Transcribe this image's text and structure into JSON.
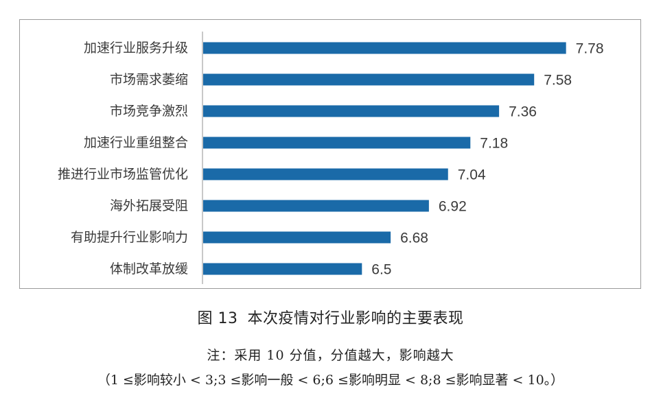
{
  "chart_data": {
    "type": "bar",
    "orientation": "horizontal",
    "categories": [
      "加速行业服务升级",
      "市场需求萎缩",
      "市场竞争激烈",
      "加速行业重组整合",
      "推进行业市场监管优化",
      "海外拓展受阻",
      "有助提升行业影响力",
      "体制改革放缓"
    ],
    "values": [
      7.78,
      7.58,
      7.36,
      7.18,
      7.04,
      6.92,
      6.68,
      6.5
    ],
    "value_labels": [
      "7.78",
      "7.58",
      "7.36",
      "7.18",
      "7.04",
      "6.92",
      "6.68",
      "6.5"
    ],
    "bar_color": "#1a6aa8",
    "xlim": [
      5.5,
      8.1
    ],
    "grid": false,
    "legend": false
  },
  "caption": {
    "number": "图 13",
    "text": "本次疫情对行业影响的主要表现"
  },
  "note": {
    "line1": "注：采用 10 分值，分值越大，影响越大",
    "line2": "（1 ≤影响较小 < 3;3 ≤影响一般 < 6;6 ≤影响明显 < 8;8 ≤影响显著 < 10。）"
  }
}
